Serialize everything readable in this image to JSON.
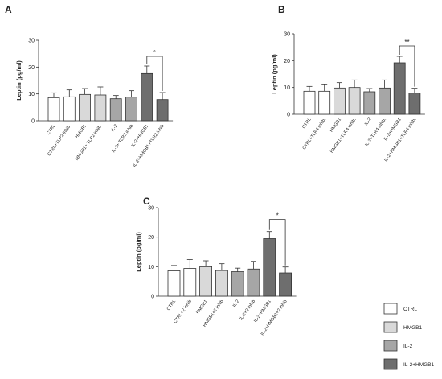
{
  "chart_data": [
    {
      "type": "bar",
      "panel_label": "A",
      "ylabel": "Leptin (pg/ml)",
      "ylim": [
        0,
        30
      ],
      "yticks": [
        0,
        10,
        20,
        30
      ],
      "categories": [
        "CTRL",
        "CTRL+TLR2 inhib.",
        "HMGB1",
        "HMGB1+ TLR2 inhib.",
        "IL-2",
        "IL-2+ TLR2 inhib",
        "IL-2+HMGB1",
        "IL-2+HMGB1+TLR2 inhib"
      ],
      "values": [
        8.6,
        8.9,
        9.8,
        9.6,
        8.2,
        8.8,
        17.6,
        7.9
      ],
      "errors": [
        1.8,
        2.6,
        2.2,
        3.0,
        1.2,
        2.4,
        2.8,
        2.6
      ],
      "fills": [
        "#ffffff",
        "#ffffff",
        "#d9d9d9",
        "#d9d9d9",
        "#a6a6a6",
        "#a6a6a6",
        "#6e6e6e",
        "#6e6e6e"
      ],
      "significance": {
        "from": 6,
        "to": 7,
        "label": "*",
        "y": 24
      }
    },
    {
      "type": "bar",
      "panel_label": "B",
      "ylabel": "Leptin (pg/ml)",
      "ylim": [
        0,
        30
      ],
      "yticks": [
        0,
        10,
        20,
        30
      ],
      "categories": [
        "CTRL",
        "CTRL+TLR4 inhib.",
        "HMGB1",
        "HMGB1+TLR4 inhib.",
        "IL-2",
        "IL-2+TLR4 inhib.",
        "IL-2+HMGB1",
        "IL-2+HMGB1+TLR4 inhib."
      ],
      "values": [
        8.6,
        8.6,
        9.8,
        10.0,
        8.4,
        9.8,
        19.2,
        7.9
      ],
      "errors": [
        1.8,
        2.4,
        2.0,
        2.8,
        1.2,
        3.0,
        2.4,
        1.8
      ],
      "fills": [
        "#ffffff",
        "#ffffff",
        "#d9d9d9",
        "#d9d9d9",
        "#a6a6a6",
        "#a6a6a6",
        "#6e6e6e",
        "#6e6e6e"
      ],
      "significance": {
        "from": 6,
        "to": 7,
        "label": "**",
        "y": 25.5
      }
    },
    {
      "type": "bar",
      "panel_label": "C",
      "ylabel": "Leptin (pg/ml)",
      "ylim": [
        0,
        30
      ],
      "yticks": [
        0,
        10,
        20,
        30
      ],
      "categories": [
        "CTRL",
        "CTRL+2 inhib",
        "HMGB1",
        "HMGB1+2 inhib",
        "IL-2",
        "IL-2+2 inhib",
        "IL-2+HMGB1",
        "IL-2+HMGB1+2 inhib"
      ],
      "values": [
        8.6,
        9.4,
        10.0,
        8.7,
        8.3,
        9.2,
        19.5,
        7.9
      ],
      "errors": [
        1.8,
        3.0,
        2.0,
        2.3,
        1.2,
        2.6,
        2.4,
        2.0
      ],
      "fills": [
        "#ffffff",
        "#ffffff",
        "#d9d9d9",
        "#d9d9d9",
        "#a6a6a6",
        "#a6a6a6",
        "#6e6e6e",
        "#6e6e6e"
      ],
      "significance": {
        "from": 6,
        "to": 7,
        "label": "*",
        "y": 26
      }
    }
  ],
  "legend": [
    {
      "label": "CTRL",
      "color": "#ffffff"
    },
    {
      "label": "HMGB1",
      "color": "#d9d9d9"
    },
    {
      "label": "IL-2",
      "color": "#a6a6a6"
    },
    {
      "label": "IL-2+HMGB1",
      "color": "#6e6e6e"
    }
  ]
}
